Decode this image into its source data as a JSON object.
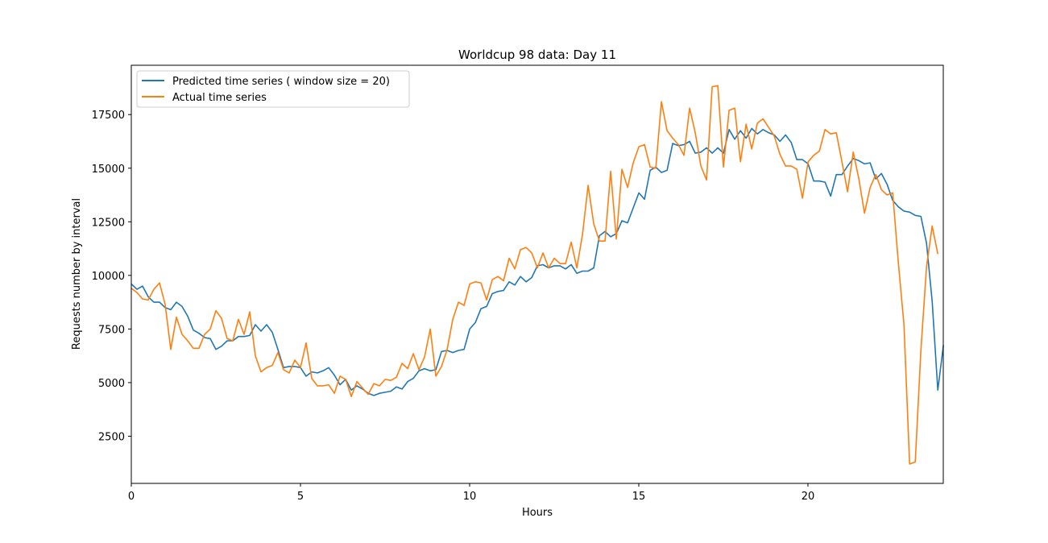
{
  "chart_data": {
    "type": "line",
    "title": "Worldcup 98 data: Day 11",
    "xlabel": "Hours",
    "ylabel": "Requests number by interval",
    "xlim": [
      0,
      24
    ],
    "ylim": [
      300,
      19800
    ],
    "xticks": [
      0,
      5,
      10,
      15,
      20
    ],
    "xtick_labels": [
      "0",
      "5",
      "10",
      "15",
      "20"
    ],
    "yticks": [
      2500,
      5000,
      7500,
      10000,
      12500,
      15000,
      17500
    ],
    "ytick_labels": [
      "2500",
      "5000",
      "7500",
      "10000",
      "12500",
      "15000",
      "17500"
    ],
    "grid": false,
    "legend_position": "upper-left",
    "x_step_hours": 0.1667,
    "series": [
      {
        "name": "Predicted time series ( window size = 20)",
        "color": "#1f77b4",
        "values": [
          9600,
          9350,
          9500,
          9000,
          8750,
          8750,
          8500,
          8400,
          8750,
          8550,
          8100,
          7450,
          7300,
          7100,
          7050,
          6550,
          6700,
          6950,
          6950,
          7150,
          7150,
          7200,
          7700,
          7400,
          7700,
          7350,
          6550,
          5700,
          5750,
          5750,
          5700,
          5300,
          5500,
          5450,
          5550,
          5700,
          5350,
          4900,
          5150,
          4650,
          4850,
          4700,
          4500,
          4400,
          4500,
          4550,
          4600,
          4800,
          4700,
          5050,
          5200,
          5550,
          5650,
          5550,
          5600,
          6450,
          6500,
          6400,
          6500,
          6550,
          7500,
          7800,
          8450,
          8550,
          9150,
          9250,
          9300,
          9700,
          9550,
          9950,
          9700,
          9900,
          10450,
          10500,
          10350,
          10450,
          10450,
          10300,
          10500,
          10100,
          10200,
          10200,
          10350,
          11850,
          12050,
          11800,
          11950,
          12550,
          12450,
          13150,
          13850,
          13550,
          14900,
          15050,
          14800,
          14900,
          16150,
          16050,
          16100,
          16250,
          15700,
          15750,
          15950,
          15700,
          15950,
          15700,
          16800,
          16350,
          16750,
          16400,
          16850,
          16600,
          16800,
          16650,
          16550,
          16250,
          16550,
          16200,
          15400,
          15400,
          15200,
          14400,
          14400,
          14350,
          13700,
          14700,
          14700,
          15100,
          15450,
          15350,
          15200,
          15250,
          14500,
          14750,
          14250,
          13500,
          13200,
          13000,
          12950,
          12800,
          12750,
          11500,
          8800,
          4650,
          6750
        ]
      },
      {
        "name": "Actual time series",
        "color": "#ff7f0e",
        "values": [
          9400,
          9200,
          8900,
          8850,
          9350,
          9650,
          8650,
          6550,
          8050,
          7250,
          6950,
          6600,
          6600,
          7250,
          7500,
          8350,
          8000,
          7050,
          6950,
          7950,
          7250,
          8300,
          6250,
          5500,
          5700,
          5800,
          6400,
          5600,
          5450,
          6050,
          5700,
          6850,
          5200,
          4850,
          4850,
          4900,
          4500,
          5300,
          5150,
          4350,
          5050,
          4750,
          4450,
          4950,
          4850,
          5150,
          5100,
          5250,
          5900,
          5650,
          6350,
          5600,
          6200,
          7500,
          5300,
          5750,
          6550,
          7950,
          8750,
          8600,
          9600,
          9700,
          9650,
          8850,
          9800,
          9950,
          9750,
          10800,
          10300,
          11200,
          11300,
          11050,
          10350,
          11050,
          10350,
          10800,
          10550,
          10550,
          11550,
          10350,
          11900,
          14200,
          12400,
          11600,
          11600,
          14850,
          11700,
          14950,
          14100,
          15250,
          16000,
          16100,
          15050,
          15000,
          18100,
          16750,
          16400,
          16100,
          15600,
          17800,
          16650,
          15100,
          14450,
          18800,
          18850,
          15050,
          17700,
          17800,
          15300,
          17050,
          15900,
          17100,
          17300,
          16900,
          16500,
          15650,
          15100,
          15100,
          14950,
          13600,
          15300,
          15600,
          15800,
          16800,
          16600,
          16650,
          15300,
          13900,
          15750,
          14500,
          12900,
          14100,
          14700,
          14000,
          13750,
          13850,
          10600,
          7700,
          1200,
          1300,
          6500,
          10400,
          12300,
          11000
        ]
      }
    ]
  }
}
